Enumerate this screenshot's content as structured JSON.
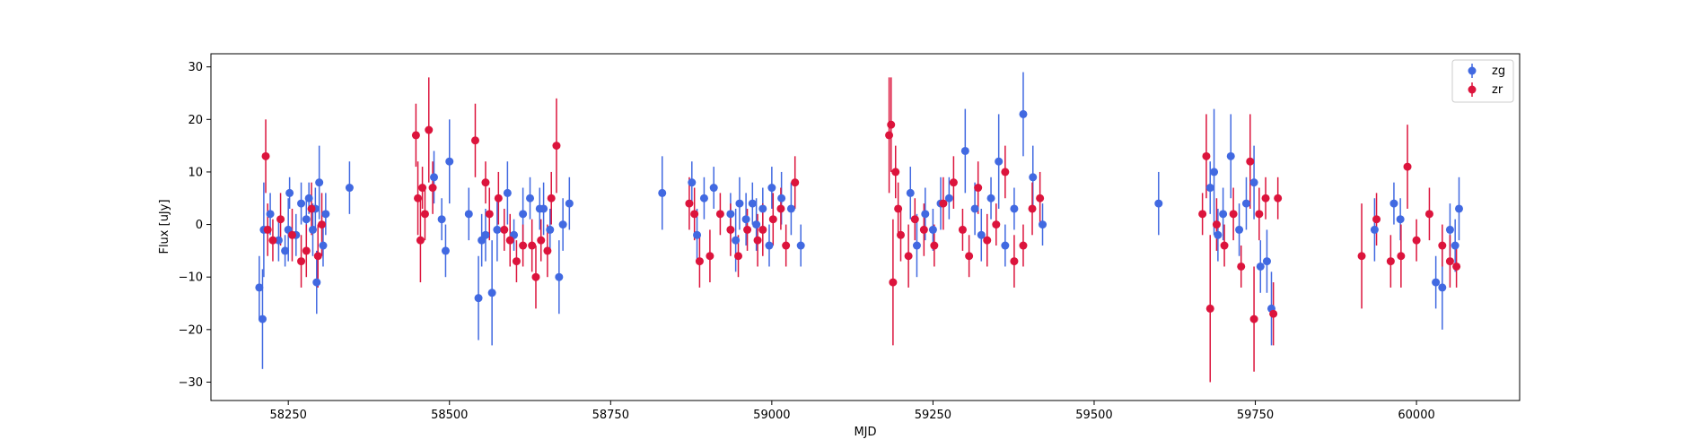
{
  "chart_data": {
    "type": "scatter",
    "title": "",
    "xlabel": "MJD",
    "ylabel": "Flux [uJy]",
    "xlim": [
      58130,
      60160
    ],
    "ylim": [
      -33.5,
      32.5
    ],
    "xticks": [
      58250,
      58500,
      58750,
      59000,
      59250,
      59500,
      59750,
      60000
    ],
    "yticks": [
      -30,
      -20,
      -10,
      0,
      10,
      20,
      30
    ],
    "grid": false,
    "legend": "top-right",
    "series": [
      {
        "name": "zg",
        "color": "#4169e1",
        "points": [
          [
            58205,
            -12,
            6
          ],
          [
            58210,
            -18,
            9.5
          ],
          [
            58212,
            -1,
            9
          ],
          [
            58222,
            2,
            4
          ],
          [
            58235,
            -3,
            4
          ],
          [
            58245,
            -5,
            3
          ],
          [
            58250,
            -1,
            6
          ],
          [
            58252,
            6,
            3
          ],
          [
            58262,
            -2,
            4
          ],
          [
            58270,
            4,
            4
          ],
          [
            58278,
            1,
            4
          ],
          [
            58282,
            5,
            3
          ],
          [
            58288,
            -1,
            5
          ],
          [
            58292,
            3,
            4
          ],
          [
            58294,
            -11,
            6
          ],
          [
            58298,
            8,
            7
          ],
          [
            58304,
            -4,
            4
          ],
          [
            58308,
            2,
            4
          ],
          [
            58345,
            7,
            5
          ],
          [
            58476,
            9,
            5
          ],
          [
            58488,
            1,
            4
          ],
          [
            58494,
            -5,
            5
          ],
          [
            58500,
            12,
            8
          ],
          [
            58530,
            2,
            5
          ],
          [
            58545,
            -14,
            8
          ],
          [
            58550,
            -3,
            5
          ],
          [
            58556,
            -2,
            5
          ],
          [
            58566,
            -13,
            10
          ],
          [
            58574,
            -1,
            6
          ],
          [
            58590,
            6,
            6
          ],
          [
            58600,
            -2,
            3
          ],
          [
            58614,
            2,
            5
          ],
          [
            58625,
            5,
            4
          ],
          [
            58640,
            3,
            4
          ],
          [
            58646,
            3,
            5
          ],
          [
            58656,
            -1,
            4
          ],
          [
            58670,
            -10,
            7
          ],
          [
            58676,
            0,
            5
          ],
          [
            58686,
            4,
            5
          ],
          [
            58830,
            6,
            7
          ],
          [
            58876,
            8,
            4
          ],
          [
            58884,
            -2,
            5
          ],
          [
            58895,
            5,
            4
          ],
          [
            58910,
            7,
            4
          ],
          [
            58936,
            2,
            4
          ],
          [
            58944,
            -3,
            6
          ],
          [
            58950,
            4,
            5
          ],
          [
            58960,
            1,
            5
          ],
          [
            58970,
            4,
            4
          ],
          [
            58976,
            0,
            5
          ],
          [
            58986,
            3,
            4
          ],
          [
            58996,
            -4,
            4
          ],
          [
            59000,
            7,
            4
          ],
          [
            59015,
            5,
            5
          ],
          [
            59030,
            3,
            5
          ],
          [
            59045,
            -4,
            4
          ],
          [
            59215,
            6,
            5
          ],
          [
            59225,
            -4,
            6
          ],
          [
            59238,
            2,
            5
          ],
          [
            59250,
            -1,
            4
          ],
          [
            59262,
            4,
            5
          ],
          [
            59275,
            5,
            4
          ],
          [
            59300,
            14,
            8
          ],
          [
            59315,
            3,
            5
          ],
          [
            59325,
            -2,
            5
          ],
          [
            59340,
            5,
            4
          ],
          [
            59352,
            12,
            9
          ],
          [
            59362,
            -4,
            4
          ],
          [
            59376,
            3,
            4
          ],
          [
            59390,
            21,
            8
          ],
          [
            59405,
            9,
            6
          ],
          [
            59420,
            0,
            4
          ],
          [
            59600,
            4,
            6
          ],
          [
            59680,
            7,
            5
          ],
          [
            59686,
            10,
            12
          ],
          [
            59692,
            -2,
            5
          ],
          [
            59700,
            2,
            5
          ],
          [
            59712,
            13,
            8
          ],
          [
            59725,
            -1,
            5
          ],
          [
            59736,
            4,
            5
          ],
          [
            59748,
            8,
            7
          ],
          [
            59758,
            -8,
            5
          ],
          [
            59768,
            -7,
            6
          ],
          [
            59775,
            -16,
            7
          ],
          [
            59935,
            -1,
            6
          ],
          [
            59965,
            4,
            4
          ],
          [
            59975,
            1,
            4
          ],
          [
            60030,
            -11,
            5
          ],
          [
            60040,
            -12,
            8
          ],
          [
            60052,
            -1,
            5
          ],
          [
            60060,
            -4,
            5
          ],
          [
            60066,
            3,
            6
          ]
        ]
      },
      {
        "name": "zr",
        "color": "#dc143c",
        "points": [
          [
            58215,
            13,
            7
          ],
          [
            58218,
            -1,
            5
          ],
          [
            58226,
            -3,
            4
          ],
          [
            58238,
            1,
            5
          ],
          [
            58256,
            -2,
            5
          ],
          [
            58270,
            -7,
            5
          ],
          [
            58278,
            -5,
            5
          ],
          [
            58286,
            3,
            5
          ],
          [
            58296,
            -6,
            6
          ],
          [
            58302,
            0,
            6
          ],
          [
            58448,
            17,
            6
          ],
          [
            58451,
            5,
            7
          ],
          [
            58455,
            -3,
            8
          ],
          [
            58458,
            7,
            4
          ],
          [
            58462,
            2,
            5
          ],
          [
            58468,
            18,
            10
          ],
          [
            58474,
            7,
            5
          ],
          [
            58540,
            16,
            7
          ],
          [
            58556,
            8,
            4
          ],
          [
            58562,
            2,
            5
          ],
          [
            58576,
            5,
            5
          ],
          [
            58585,
            -1,
            4
          ],
          [
            58594,
            -3,
            5
          ],
          [
            58604,
            -7,
            4
          ],
          [
            58614,
            -4,
            4
          ],
          [
            58628,
            -4,
            5
          ],
          [
            58634,
            -10,
            6
          ],
          [
            58642,
            -3,
            4
          ],
          [
            58652,
            -5,
            5
          ],
          [
            58658,
            5,
            5
          ],
          [
            58666,
            15,
            9
          ],
          [
            58872,
            4,
            5
          ],
          [
            58880,
            2,
            5
          ],
          [
            58888,
            -7,
            5
          ],
          [
            58904,
            -6,
            5
          ],
          [
            58920,
            2,
            4
          ],
          [
            58936,
            -1,
            5
          ],
          [
            58948,
            -6,
            4
          ],
          [
            58962,
            -1,
            4
          ],
          [
            58978,
            -3,
            5
          ],
          [
            58986,
            -1,
            5
          ],
          [
            59002,
            1,
            5
          ],
          [
            59014,
            3,
            4
          ],
          [
            59022,
            -4,
            4
          ],
          [
            59036,
            8,
            5
          ],
          [
            59182,
            17,
            11
          ],
          [
            59185,
            19,
            9
          ],
          [
            59188,
            -11,
            12
          ],
          [
            59192,
            10,
            5
          ],
          [
            59196,
            3,
            5
          ],
          [
            59200,
            -2,
            5
          ],
          [
            59212,
            -6,
            6
          ],
          [
            59222,
            1,
            4
          ],
          [
            59236,
            -1,
            5
          ],
          [
            59252,
            -4,
            4
          ],
          [
            59266,
            4,
            5
          ],
          [
            59282,
            8,
            5
          ],
          [
            59296,
            -1,
            4
          ],
          [
            59306,
            -6,
            4
          ],
          [
            59320,
            7,
            5
          ],
          [
            59334,
            -3,
            5
          ],
          [
            59348,
            0,
            4
          ],
          [
            59362,
            10,
            5
          ],
          [
            59376,
            -7,
            5
          ],
          [
            59390,
            -4,
            4
          ],
          [
            59404,
            3,
            5
          ],
          [
            59416,
            5,
            5
          ],
          [
            59668,
            2,
            4
          ],
          [
            59674,
            13,
            8
          ],
          [
            59680,
            -16,
            14
          ],
          [
            59690,
            0,
            5
          ],
          [
            59702,
            -4,
            4
          ],
          [
            59716,
            2,
            5
          ],
          [
            59728,
            -8,
            4
          ],
          [
            59742,
            12,
            9
          ],
          [
            59748,
            -18,
            10
          ],
          [
            59756,
            2,
            5
          ],
          [
            59766,
            5,
            4
          ],
          [
            59778,
            -17,
            6
          ],
          [
            59785,
            5,
            4
          ],
          [
            59915,
            -6,
            10
          ],
          [
            59938,
            1,
            5
          ],
          [
            59960,
            -7,
            5
          ],
          [
            59976,
            -6,
            6
          ],
          [
            59986,
            11,
            8
          ],
          [
            60000,
            -3,
            4
          ],
          [
            60020,
            2,
            5
          ],
          [
            60040,
            -4,
            4
          ],
          [
            60052,
            -7,
            5
          ],
          [
            60062,
            -8,
            4
          ]
        ]
      }
    ]
  }
}
